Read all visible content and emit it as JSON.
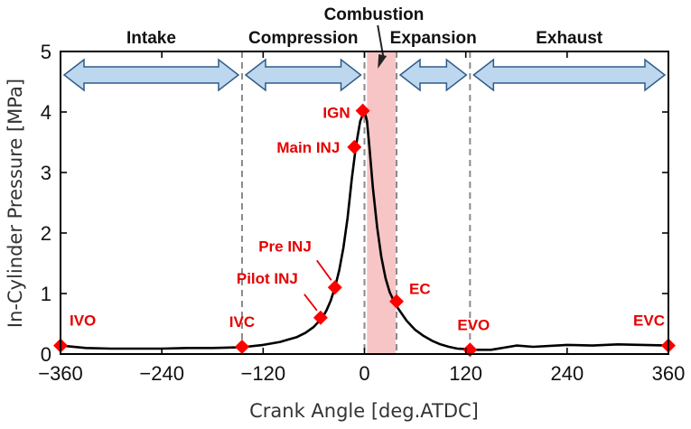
{
  "chart_data": {
    "type": "line",
    "xlabel": "Crank Angle [deg.ATDC]",
    "ylabel": "In-Cylinder Pressure [MPa]",
    "xlim": [
      -360,
      360
    ],
    "ylim": [
      0,
      5
    ],
    "xticks": [
      -360,
      -240,
      -120,
      0,
      120,
      240,
      360
    ],
    "yticks": [
      0,
      1,
      2,
      3,
      4,
      5
    ],
    "grid": false,
    "series": [
      {
        "x": [
          -360,
          -330,
          -300,
          -270,
          -240,
          -210,
          -180,
          -150,
          -140,
          -120,
          -100,
          -90,
          -80,
          -70,
          -60,
          -50,
          -45,
          -40,
          -35,
          -30,
          -25,
          -20,
          -15,
          -10,
          -5,
          0,
          3,
          6,
          10,
          15,
          20,
          25,
          30,
          35,
          40,
          50,
          60,
          70,
          80,
          90,
          100,
          110,
          120,
          125,
          150,
          180,
          200,
          240,
          270,
          300,
          330,
          360
        ],
        "y": [
          0.14,
          0.1,
          0.09,
          0.09,
          0.09,
          0.1,
          0.1,
          0.11,
          0.12,
          0.15,
          0.2,
          0.24,
          0.28,
          0.35,
          0.45,
          0.6,
          0.72,
          0.88,
          1.1,
          1.38,
          1.75,
          2.25,
          2.9,
          3.45,
          3.85,
          4.02,
          3.85,
          3.4,
          2.75,
          2.1,
          1.6,
          1.25,
          1.02,
          0.87,
          0.75,
          0.55,
          0.4,
          0.3,
          0.22,
          0.16,
          0.12,
          0.09,
          0.08,
          0.07,
          0.07,
          0.14,
          0.12,
          0.15,
          0.14,
          0.16,
          0.15,
          0.14
        ]
      }
    ],
    "combustion_region": [
      3,
      37
    ],
    "phase_boundaries": [
      -145,
      0,
      38,
      125
    ],
    "phases": [
      {
        "label": "Intake",
        "range": [
          -360,
          -145
        ]
      },
      {
        "label": "Compression",
        "range": [
          -145,
          0
        ]
      },
      {
        "label": "Expansion",
        "range": [
          38,
          125
        ]
      },
      {
        "label": "Exhaust",
        "range": [
          125,
          360
        ]
      }
    ],
    "combustion_label": "Combustion",
    "events": [
      {
        "label": "IVO",
        "x": -360,
        "y": 0.14
      },
      {
        "label": "IVC",
        "x": -145,
        "y": 0.12
      },
      {
        "label": "Pilot INJ",
        "x": -52,
        "y": 0.6
      },
      {
        "label": "Pre INJ",
        "x": -35,
        "y": 1.1
      },
      {
        "label": "Main INJ",
        "x": -12,
        "y": 3.42
      },
      {
        "label": "IGN",
        "x": -2,
        "y": 4.02
      },
      {
        "label": "EC",
        "x": 38,
        "y": 0.87
      },
      {
        "label": "EVO",
        "x": 125,
        "y": 0.07
      },
      {
        "label": "EVC",
        "x": 360,
        "y": 0.14
      }
    ],
    "colors": {
      "curve": "#000000",
      "marker": "#ff0000",
      "event_label": "#e60000",
      "combustion_fill": "#f7c5c5",
      "arrow_fill": "#bdd7ee",
      "arrow_stroke": "#2e5b8a",
      "boundary_line": "#8a8a8a"
    }
  }
}
